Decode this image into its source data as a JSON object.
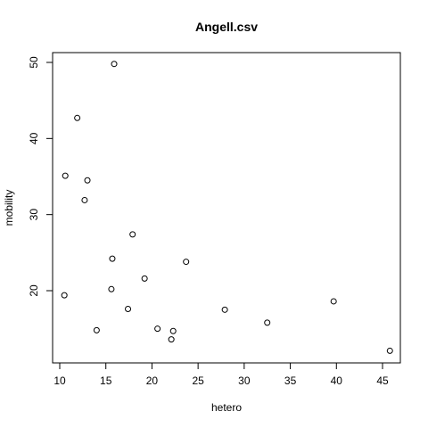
{
  "chart_data": {
    "type": "scatter",
    "title": "Angell.csv",
    "xlabel": "hetero",
    "ylabel": "mobility",
    "xlim": [
      10,
      46
    ],
    "ylim": [
      12,
      50
    ],
    "xticks": [
      10,
      15,
      20,
      25,
      30,
      35,
      40,
      45
    ],
    "yticks": [
      20,
      30,
      40,
      50
    ],
    "grid": false,
    "points": [
      {
        "x": 15.9,
        "y": 49.8
      },
      {
        "x": 11.9,
        "y": 42.7
      },
      {
        "x": 10.6,
        "y": 35.1
      },
      {
        "x": 13.0,
        "y": 34.5
      },
      {
        "x": 12.7,
        "y": 31.9
      },
      {
        "x": 17.9,
        "y": 27.4
      },
      {
        "x": 15.7,
        "y": 24.2
      },
      {
        "x": 23.7,
        "y": 23.8
      },
      {
        "x": 19.2,
        "y": 21.6
      },
      {
        "x": 15.6,
        "y": 20.2
      },
      {
        "x": 10.5,
        "y": 19.4
      },
      {
        "x": 17.4,
        "y": 17.6
      },
      {
        "x": 27.9,
        "y": 17.5
      },
      {
        "x": 39.7,
        "y": 18.6
      },
      {
        "x": 32.5,
        "y": 15.8
      },
      {
        "x": 20.6,
        "y": 15.0
      },
      {
        "x": 22.3,
        "y": 14.7
      },
      {
        "x": 14.0,
        "y": 14.8
      },
      {
        "x": 22.1,
        "y": 13.6
      },
      {
        "x": 45.8,
        "y": 12.1
      }
    ]
  }
}
